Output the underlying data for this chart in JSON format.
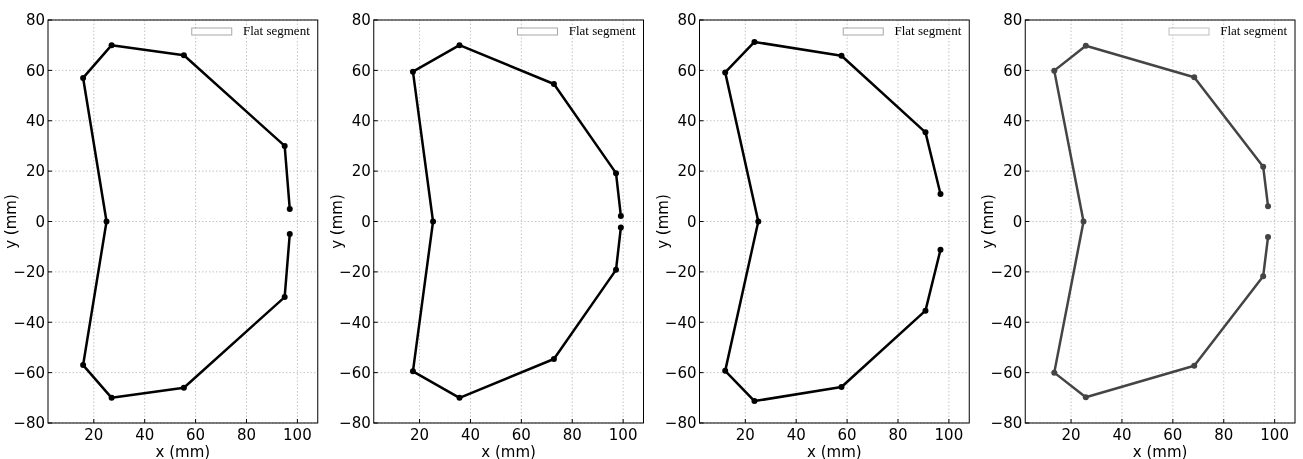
{
  "chart_data": [
    {
      "type": "line",
      "xlabel": "x (mm)",
      "ylabel": "y (mm)",
      "xlim": [
        2,
        108
      ],
      "ylim": [
        -80,
        80
      ],
      "xticks": [
        20,
        40,
        60,
        80,
        100
      ],
      "yticks": [
        -80,
        -60,
        -40,
        -20,
        0,
        20,
        40,
        60,
        80
      ],
      "grid": true,
      "legend": "top right",
      "marker": "circle",
      "line_style": "solid",
      "series": [
        {
          "name": "Flat segment",
          "color": "#000000",
          "x": [
            97,
            95,
            55.4,
            27,
            15.8,
            25,
            15.8,
            27,
            55.4,
            95,
            97
          ],
          "values": [
            5,
            30,
            66,
            70,
            57,
            0,
            -57,
            -70,
            -66,
            -30,
            -5
          ]
        }
      ]
    },
    {
      "type": "line",
      "xlabel": "x (mm)",
      "ylabel": "y (mm)",
      "xlim": [
        2,
        108
      ],
      "ylim": [
        -80,
        80
      ],
      "xticks": [
        20,
        40,
        60,
        80,
        100
      ],
      "yticks": [
        -80,
        -60,
        -40,
        -20,
        0,
        20,
        40,
        60,
        80
      ],
      "grid": true,
      "legend": "top right",
      "marker": "circle",
      "line_style": "solid",
      "series": [
        {
          "name": "Flat segment",
          "color": "#000000",
          "x": [
            99.1,
            97.2,
            72.8,
            35.7,
            17.4,
            25.3,
            17.4,
            35.7,
            72.8,
            97.2,
            99.1
          ],
          "values": [
            2.2,
            19.2,
            54.6,
            70,
            59.5,
            0,
            -59.5,
            -70,
            -54.6,
            -19.2,
            -2.4
          ]
        }
      ]
    },
    {
      "type": "line",
      "xlabel": "x (mm)",
      "ylabel": "y (mm)",
      "xlim": [
        2,
        108
      ],
      "ylim": [
        -80,
        80
      ],
      "xticks": [
        20,
        40,
        60,
        80,
        100
      ],
      "yticks": [
        -80,
        -60,
        -40,
        -20,
        0,
        20,
        40,
        60,
        80
      ],
      "grid": true,
      "legend": "top right",
      "marker": "circle",
      "line_style": "solid",
      "series": [
        {
          "name": "Flat segment",
          "color": "#000000",
          "x": [
            96.7,
            90.8,
            57.8,
            23.6,
            12.1,
            25.1,
            12.1,
            23.6,
            57.8,
            90.8,
            96.7
          ],
          "values": [
            10.9,
            35.4,
            65.8,
            71.3,
            59.2,
            0,
            -59.3,
            -71.3,
            -65.7,
            -35.4,
            -11.2
          ]
        }
      ]
    },
    {
      "type": "line",
      "xlabel": "x (mm)",
      "ylabel": "y (mm)",
      "xlim": [
        2,
        108
      ],
      "ylim": [
        -80,
        80
      ],
      "xticks": [
        20,
        40,
        60,
        80,
        100
      ],
      "yticks": [
        -80,
        -60,
        -40,
        -20,
        0,
        20,
        40,
        60,
        80
      ],
      "grid": true,
      "legend": "top right",
      "marker": "circle",
      "line_style": "solid",
      "series": [
        {
          "name": "Flat segment",
          "color": "#444444",
          "x": [
            97.4,
            95.5,
            68.4,
            25.8,
            13.4,
            24.9,
            13.4,
            25.8,
            68.4,
            95.5,
            97.4
          ],
          "values": [
            6.1,
            21.7,
            57.3,
            69.8,
            59.9,
            0,
            -60,
            -69.8,
            -57.3,
            -21.7,
            -6.2
          ]
        }
      ]
    }
  ]
}
